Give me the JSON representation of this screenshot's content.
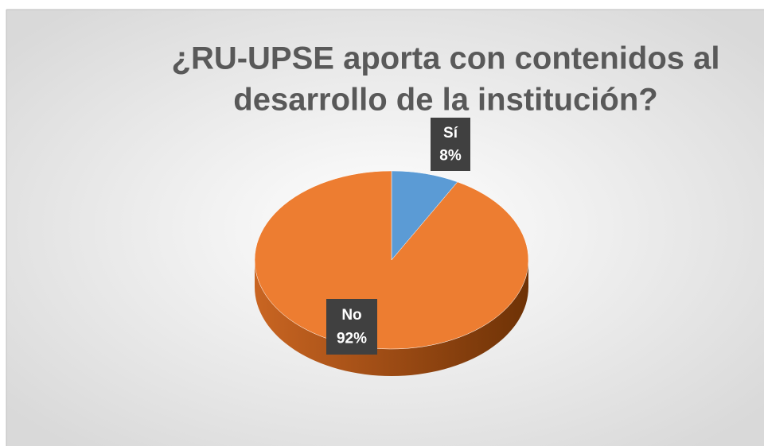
{
  "chart_data": {
    "type": "pie",
    "title": [
      "¿RU-UPSE aporta con contenidos al",
      "desarrollo de la institución?"
    ],
    "categories": [
      "Sí",
      "No"
    ],
    "values": [
      8,
      92
    ],
    "value_labels": [
      "8%",
      "92%"
    ],
    "colors": [
      "#5b9bd5",
      "#ed7d31"
    ],
    "side_colors": [
      "#3d7cb5",
      "#b35a1e"
    ],
    "start_angle": 0,
    "direction": "clockwise"
  }
}
